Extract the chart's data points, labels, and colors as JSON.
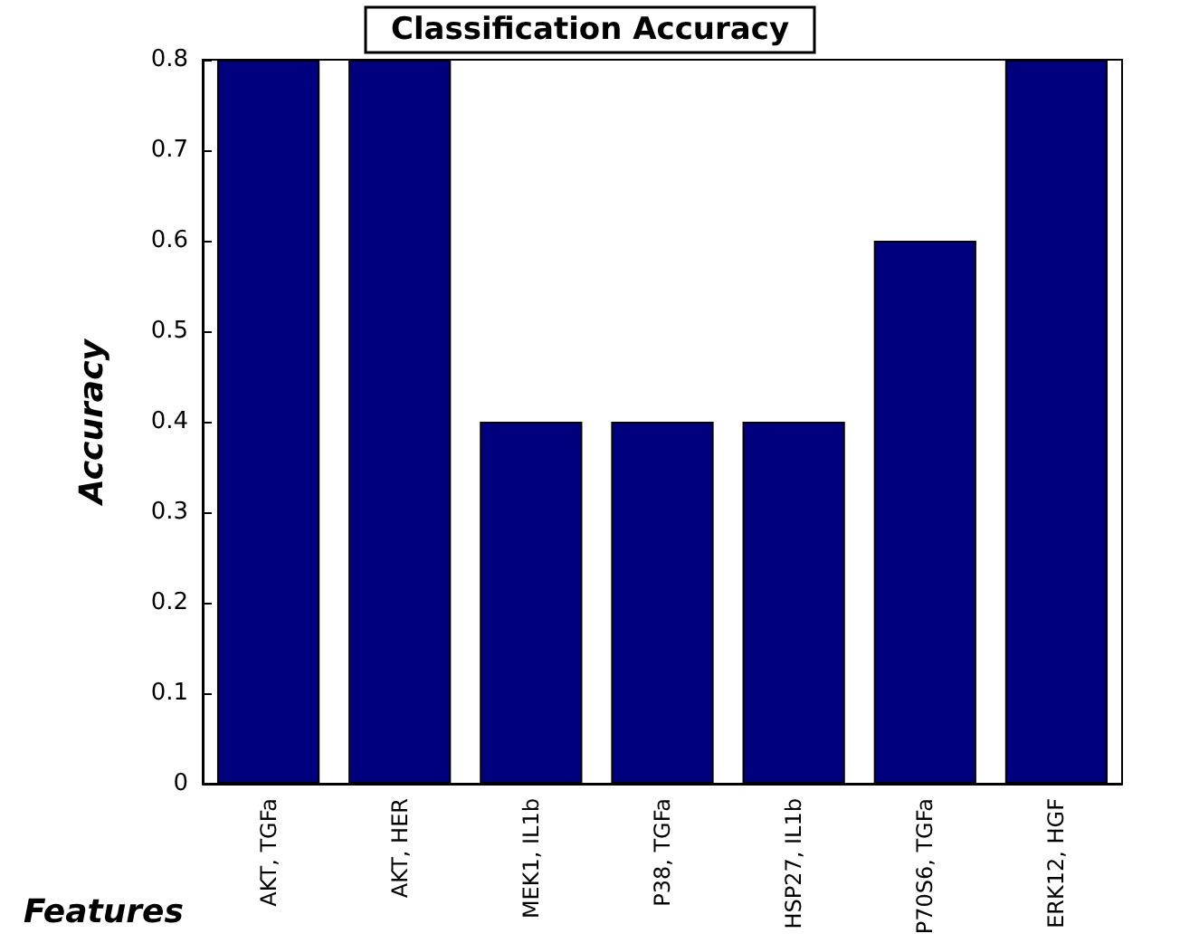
{
  "chart_data": {
    "type": "bar",
    "title": "Classification Accuracy",
    "xlabel": "Features",
    "ylabel": "Accuracy",
    "categories": [
      "AKT, TGFa",
      "AKT, HER",
      "MEK1, IL1b",
      "P38, TGFa",
      "HSP27, IL1b",
      "P70S6, TGFa",
      "ERK12, HGF"
    ],
    "values": [
      0.8,
      0.8,
      0.4,
      0.4,
      0.4,
      0.6,
      0.8
    ],
    "color": "#00007f",
    "ylim": [
      0,
      0.8
    ],
    "yticks": [
      0,
      0.1,
      0.2,
      0.3,
      0.4,
      0.5,
      0.6,
      0.7,
      0.8
    ]
  }
}
